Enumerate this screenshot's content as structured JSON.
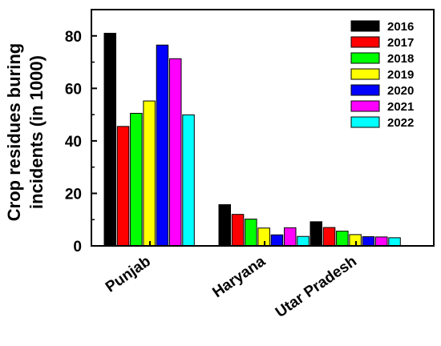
{
  "chart_data": {
    "type": "bar",
    "title": "",
    "xlabel": "",
    "ylabel_lines": [
      "Crop residues buring",
      "incidents (in 1000)"
    ],
    "ylim": [
      0,
      90
    ],
    "yticks": [
      0,
      20,
      40,
      60,
      80
    ],
    "categories": [
      "Punjab",
      "Haryana",
      "Utar Pradesh"
    ],
    "legend_position": "top-right",
    "grid": false,
    "series": [
      {
        "name": "2016",
        "color": "#000000",
        "values": [
          81,
          15.7,
          9.2
        ]
      },
      {
        "name": "2017",
        "color": "#ff0000",
        "values": [
          45.5,
          12,
          7
        ]
      },
      {
        "name": "2018",
        "color": "#00ff00",
        "values": [
          50.5,
          10.2,
          5.6
        ]
      },
      {
        "name": "2019",
        "color": "#ffff00",
        "values": [
          55.2,
          6.8,
          4.3
        ]
      },
      {
        "name": "2020",
        "color": "#0000ff",
        "values": [
          76.5,
          4.2,
          3.5
        ]
      },
      {
        "name": "2021",
        "color": "#ff00ff",
        "values": [
          71.3,
          6.9,
          3.4
        ]
      },
      {
        "name": "2022",
        "color": "#00ffff",
        "values": [
          49.9,
          3.6,
          3.1
        ]
      }
    ]
  }
}
